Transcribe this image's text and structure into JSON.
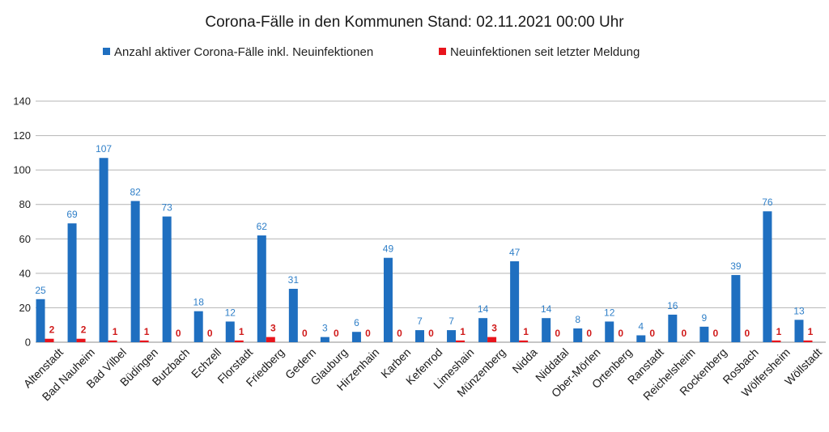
{
  "chart_data": {
    "type": "bar",
    "title": "Corona-Fälle in den Kommunen Stand: 02.11.2021 00:00 Uhr",
    "xlabel": "",
    "ylabel": "",
    "ylim": [
      0,
      140
    ],
    "yticks": [
      0,
      20,
      40,
      60,
      80,
      100,
      120,
      140
    ],
    "grid": true,
    "legend_position": "top",
    "categories": [
      "Altenstadt",
      "Bad Nauheim",
      "Bad Vilbel",
      "Büdingen",
      "Butzbach",
      "Echzell",
      "Florstadt",
      "Friedberg",
      "Gedern",
      "Glauburg",
      "Hirzenhain",
      "Karben",
      "Kefenrod",
      "Limeshain",
      "Münzenberg",
      "Nidda",
      "Niddatal",
      "Ober-Mörlen",
      "Ortenberg",
      "Ranstadt",
      "Reichelsheim",
      "Rockenberg",
      "Rosbach",
      "Wölfersheim",
      "Wöllstadt"
    ],
    "series": [
      {
        "name": "Anzahl aktiver Corona-Fälle inkl. Neuinfektionen",
        "color": "#1f6fc0",
        "label_color": "#2f7fc8",
        "values": [
          25,
          69,
          107,
          82,
          73,
          18,
          12,
          62,
          31,
          3,
          6,
          49,
          7,
          7,
          14,
          47,
          14,
          8,
          12,
          4,
          16,
          9,
          39,
          76,
          13
        ]
      },
      {
        "name": "Neuinfektionen seit letzter Meldung",
        "color": "#e8141c",
        "label_color": "#d01a1a",
        "values": [
          2,
          2,
          1,
          1,
          0,
          0,
          1,
          3,
          0,
          0,
          0,
          0,
          0,
          1,
          3,
          1,
          0,
          0,
          0,
          0,
          0,
          0,
          0,
          1,
          1
        ]
      }
    ]
  }
}
